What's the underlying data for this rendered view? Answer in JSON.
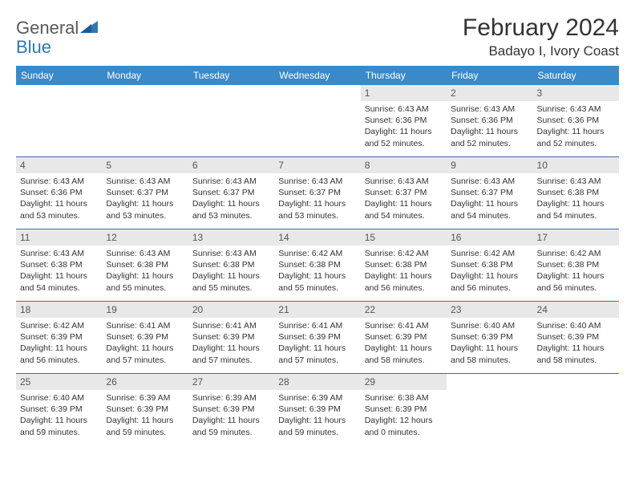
{
  "logo": {
    "text1": "General",
    "text2": "Blue",
    "color_gray": "#7a7a7a",
    "color_blue": "#2f77b6"
  },
  "title": "February 2024",
  "location": "Badayo I, Ivory Coast",
  "header_bg": "#3a89c9",
  "weekdays": [
    "Sunday",
    "Monday",
    "Tuesday",
    "Wednesday",
    "Thursday",
    "Friday",
    "Saturday"
  ],
  "weeks": [
    [
      {
        "empty": true
      },
      {
        "empty": true
      },
      {
        "empty": true
      },
      {
        "empty": true
      },
      {
        "num": "1",
        "sunrise": "6:43 AM",
        "sunset": "6:36 PM",
        "daylight": "11 hours and 52 minutes."
      },
      {
        "num": "2",
        "sunrise": "6:43 AM",
        "sunset": "6:36 PM",
        "daylight": "11 hours and 52 minutes."
      },
      {
        "num": "3",
        "sunrise": "6:43 AM",
        "sunset": "6:36 PM",
        "daylight": "11 hours and 52 minutes."
      }
    ],
    [
      {
        "num": "4",
        "sunrise": "6:43 AM",
        "sunset": "6:36 PM",
        "daylight": "11 hours and 53 minutes."
      },
      {
        "num": "5",
        "sunrise": "6:43 AM",
        "sunset": "6:37 PM",
        "daylight": "11 hours and 53 minutes."
      },
      {
        "num": "6",
        "sunrise": "6:43 AM",
        "sunset": "6:37 PM",
        "daylight": "11 hours and 53 minutes."
      },
      {
        "num": "7",
        "sunrise": "6:43 AM",
        "sunset": "6:37 PM",
        "daylight": "11 hours and 53 minutes."
      },
      {
        "num": "8",
        "sunrise": "6:43 AM",
        "sunset": "6:37 PM",
        "daylight": "11 hours and 54 minutes."
      },
      {
        "num": "9",
        "sunrise": "6:43 AM",
        "sunset": "6:37 PM",
        "daylight": "11 hours and 54 minutes."
      },
      {
        "num": "10",
        "sunrise": "6:43 AM",
        "sunset": "6:38 PM",
        "daylight": "11 hours and 54 minutes."
      }
    ],
    [
      {
        "num": "11",
        "sunrise": "6:43 AM",
        "sunset": "6:38 PM",
        "daylight": "11 hours and 54 minutes."
      },
      {
        "num": "12",
        "sunrise": "6:43 AM",
        "sunset": "6:38 PM",
        "daylight": "11 hours and 55 minutes."
      },
      {
        "num": "13",
        "sunrise": "6:43 AM",
        "sunset": "6:38 PM",
        "daylight": "11 hours and 55 minutes."
      },
      {
        "num": "14",
        "sunrise": "6:42 AM",
        "sunset": "6:38 PM",
        "daylight": "11 hours and 55 minutes."
      },
      {
        "num": "15",
        "sunrise": "6:42 AM",
        "sunset": "6:38 PM",
        "daylight": "11 hours and 56 minutes."
      },
      {
        "num": "16",
        "sunrise": "6:42 AM",
        "sunset": "6:38 PM",
        "daylight": "11 hours and 56 minutes."
      },
      {
        "num": "17",
        "sunrise": "6:42 AM",
        "sunset": "6:38 PM",
        "daylight": "11 hours and 56 minutes."
      }
    ],
    [
      {
        "num": "18",
        "sunrise": "6:42 AM",
        "sunset": "6:39 PM",
        "daylight": "11 hours and 56 minutes."
      },
      {
        "num": "19",
        "sunrise": "6:41 AM",
        "sunset": "6:39 PM",
        "daylight": "11 hours and 57 minutes."
      },
      {
        "num": "20",
        "sunrise": "6:41 AM",
        "sunset": "6:39 PM",
        "daylight": "11 hours and 57 minutes."
      },
      {
        "num": "21",
        "sunrise": "6:41 AM",
        "sunset": "6:39 PM",
        "daylight": "11 hours and 57 minutes."
      },
      {
        "num": "22",
        "sunrise": "6:41 AM",
        "sunset": "6:39 PM",
        "daylight": "11 hours and 58 minutes."
      },
      {
        "num": "23",
        "sunrise": "6:40 AM",
        "sunset": "6:39 PM",
        "daylight": "11 hours and 58 minutes."
      },
      {
        "num": "24",
        "sunrise": "6:40 AM",
        "sunset": "6:39 PM",
        "daylight": "11 hours and 58 minutes."
      }
    ],
    [
      {
        "num": "25",
        "sunrise": "6:40 AM",
        "sunset": "6:39 PM",
        "daylight": "11 hours and 59 minutes."
      },
      {
        "num": "26",
        "sunrise": "6:39 AM",
        "sunset": "6:39 PM",
        "daylight": "11 hours and 59 minutes."
      },
      {
        "num": "27",
        "sunrise": "6:39 AM",
        "sunset": "6:39 PM",
        "daylight": "11 hours and 59 minutes."
      },
      {
        "num": "28",
        "sunrise": "6:39 AM",
        "sunset": "6:39 PM",
        "daylight": "11 hours and 59 minutes."
      },
      {
        "num": "29",
        "sunrise": "6:38 AM",
        "sunset": "6:39 PM",
        "daylight": "12 hours and 0 minutes."
      },
      {
        "empty": true
      },
      {
        "empty": true
      }
    ]
  ],
  "labels": {
    "sunrise": "Sunrise: ",
    "sunset": "Sunset: ",
    "daylight": "Daylight: "
  }
}
